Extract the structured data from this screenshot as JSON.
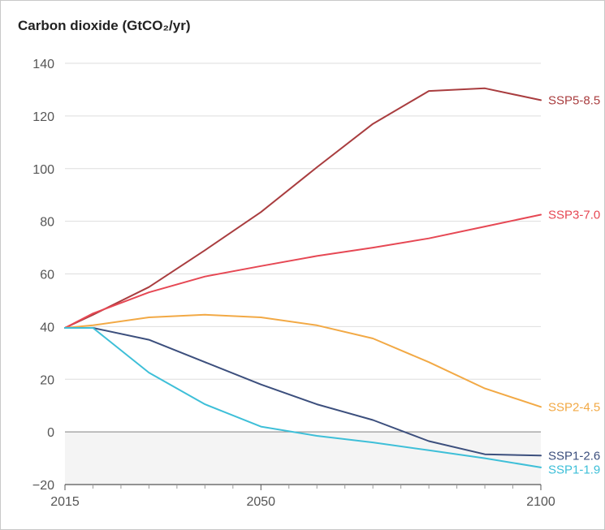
{
  "chart_data": {
    "type": "line",
    "title": "Carbon dioxide (GtCO₂/yr)",
    "xlabel": "",
    "ylabel": "",
    "xlim": [
      2015,
      2100
    ],
    "ylim": [
      -20,
      140
    ],
    "x_ticks": [
      2015,
      2050,
      2100
    ],
    "x_tick_labels": [
      "2015",
      "2050",
      "2100"
    ],
    "y_ticks": [
      -20,
      0,
      20,
      40,
      60,
      80,
      100,
      120,
      140
    ],
    "y_tick_labels": [
      "−20",
      "0",
      "20",
      "40",
      "60",
      "80",
      "100",
      "120",
      "140"
    ],
    "grid": true,
    "negative_region_shaded": true,
    "legend": "inline-right",
    "x": [
      2015,
      2020,
      2030,
      2040,
      2050,
      2060,
      2070,
      2080,
      2090,
      2100
    ],
    "series": [
      {
        "name": "SSP5-8.5",
        "color": "#a93d3f",
        "values": [
          39.5,
          44.5,
          55,
          69,
          83.5,
          100.5,
          117,
          129.5,
          130.5,
          126
        ]
      },
      {
        "name": "SSP3-7.0",
        "color": "#e64854",
        "values": [
          39.5,
          45,
          53,
          59,
          63,
          66.8,
          70,
          73.5,
          78,
          82.5
        ]
      },
      {
        "name": "SSP2-4.5",
        "color": "#f2a945",
        "values": [
          39.5,
          40.5,
          43.5,
          44.5,
          43.5,
          40.5,
          35.5,
          26.5,
          16.5,
          9.5
        ]
      },
      {
        "name": "SSP1-2.6",
        "color": "#3c4f7d",
        "values": [
          39.5,
          39.5,
          35,
          26.5,
          18,
          10.5,
          4.5,
          -3.5,
          -8.5,
          -9
        ]
      },
      {
        "name": "SSP1-1.9",
        "color": "#3ebfd8",
        "values": [
          39.5,
          39.5,
          22.5,
          10.5,
          2,
          -1.5,
          -4,
          -7,
          -10,
          -13.5
        ]
      }
    ]
  }
}
